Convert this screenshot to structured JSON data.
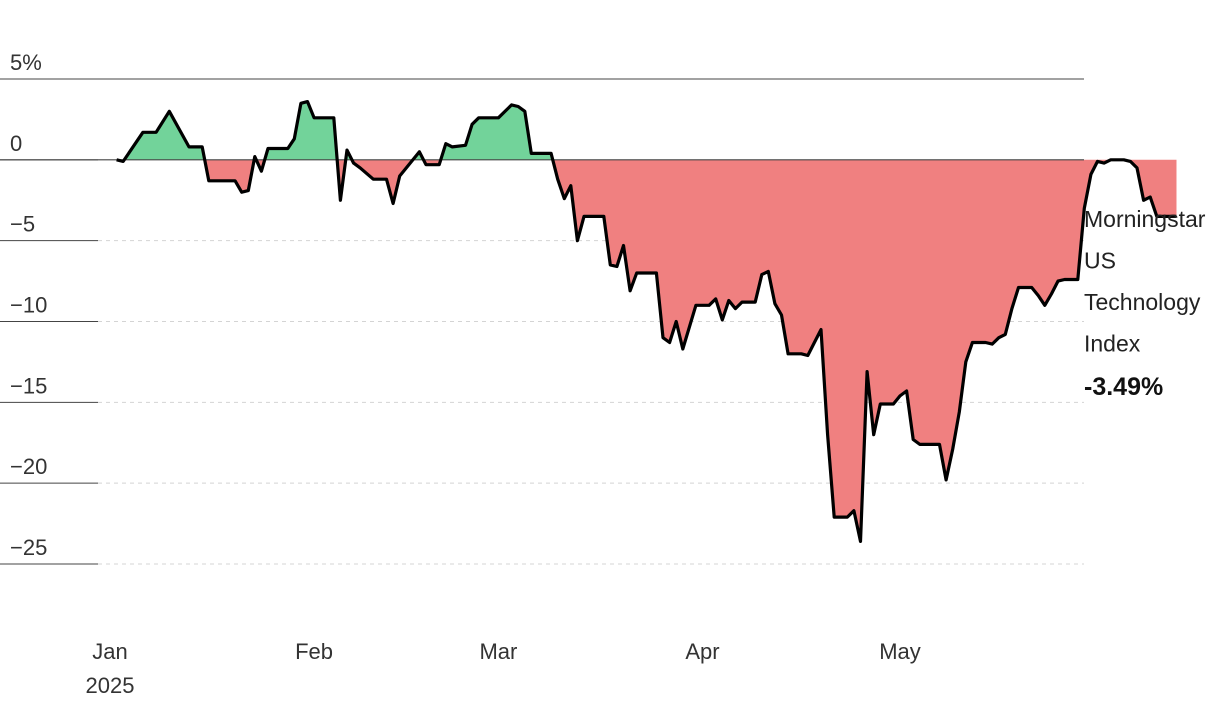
{
  "chart_data": {
    "type": "area",
    "title": "",
    "xlabel": "",
    "ylabel": "",
    "ylim": [
      -25,
      5
    ],
    "grid": true,
    "y_ticks": [
      {
        "value": 5,
        "label": "5%"
      },
      {
        "value": 0,
        "label": "0"
      },
      {
        "value": -5,
        "label": "−5"
      },
      {
        "value": -10,
        "label": "−10"
      },
      {
        "value": -15,
        "label": "−15"
      },
      {
        "value": -20,
        "label": "−20"
      },
      {
        "value": -25,
        "label": "−25"
      }
    ],
    "x_ticks": [
      {
        "date": "2025-01-01",
        "label": "Jan",
        "sublabel": "2025"
      },
      {
        "date": "2025-02-01",
        "label": "Feb",
        "sublabel": ""
      },
      {
        "date": "2025-03-01",
        "label": "Mar",
        "sublabel": ""
      },
      {
        "date": "2025-04-01",
        "label": "Apr",
        "sublabel": ""
      },
      {
        "date": "2025-05-01",
        "label": "May",
        "sublabel": ""
      }
    ],
    "positive_color": "#72d39a",
    "negative_color": "#f08080",
    "line_color": "#000000",
    "series": [
      {
        "name": "Morningstar US Technology Index",
        "name_lines": [
          "Morningstar",
          "US",
          "Technology",
          "Index"
        ],
        "last_value_label": "-3.49%",
        "points": [
          [
            "2025-01-02",
            0.0
          ],
          [
            "2025-01-03",
            -0.1
          ],
          [
            "2025-01-06",
            1.7
          ],
          [
            "2025-01-07",
            1.7
          ],
          [
            "2025-01-08",
            1.7
          ],
          [
            "2025-01-10",
            3.0
          ],
          [
            "2025-01-13",
            0.8
          ],
          [
            "2025-01-14",
            0.8
          ],
          [
            "2025-01-15",
            0.8
          ],
          [
            "2025-01-16",
            -1.3
          ],
          [
            "2025-01-17",
            -1.3
          ],
          [
            "2025-01-20",
            -1.3
          ],
          [
            "2025-01-21",
            -2.0
          ],
          [
            "2025-01-22",
            -1.9
          ],
          [
            "2025-01-23",
            0.2
          ],
          [
            "2025-01-24",
            -0.7
          ],
          [
            "2025-01-25",
            0.7
          ],
          [
            "2025-01-27",
            0.7
          ],
          [
            "2025-01-28",
            0.7
          ],
          [
            "2025-01-29",
            1.3
          ],
          [
            "2025-01-30",
            3.5
          ],
          [
            "2025-01-31",
            3.6
          ],
          [
            "2025-02-01",
            2.6
          ],
          [
            "2025-02-03",
            2.6
          ],
          [
            "2025-02-04",
            2.6
          ],
          [
            "2025-02-05",
            -2.5
          ],
          [
            "2025-02-06",
            0.6
          ],
          [
            "2025-02-07",
            -0.2
          ],
          [
            "2025-02-08",
            -0.5
          ],
          [
            "2025-02-10",
            -1.2
          ],
          [
            "2025-02-11",
            -1.2
          ],
          [
            "2025-02-12",
            -1.2
          ],
          [
            "2025-02-13",
            -2.7
          ],
          [
            "2025-02-14",
            -1.0
          ],
          [
            "2025-02-17",
            0.5
          ],
          [
            "2025-02-18",
            -0.3
          ],
          [
            "2025-02-19",
            -0.3
          ],
          [
            "2025-02-20",
            -0.3
          ],
          [
            "2025-02-21",
            1.0
          ],
          [
            "2025-02-22",
            0.8
          ],
          [
            "2025-02-24",
            0.9
          ],
          [
            "2025-02-25",
            2.2
          ],
          [
            "2025-02-26",
            2.6
          ],
          [
            "2025-02-27",
            2.6
          ],
          [
            "2025-02-28",
            2.6
          ],
          [
            "2025-03-01",
            2.6
          ],
          [
            "2025-03-03",
            3.4
          ],
          [
            "2025-03-04",
            3.3
          ],
          [
            "2025-03-05",
            3.0
          ],
          [
            "2025-03-06",
            0.4
          ],
          [
            "2025-03-07",
            0.4
          ],
          [
            "2025-03-09",
            0.4
          ],
          [
            "2025-03-10",
            -1.2
          ],
          [
            "2025-03-11",
            -2.4
          ],
          [
            "2025-03-12",
            -1.6
          ],
          [
            "2025-03-13",
            -5.0
          ],
          [
            "2025-03-14",
            -3.5
          ],
          [
            "2025-03-15",
            -3.5
          ],
          [
            "2025-03-17",
            -3.5
          ],
          [
            "2025-03-18",
            -6.5
          ],
          [
            "2025-03-19",
            -6.6
          ],
          [
            "2025-03-20",
            -5.3
          ],
          [
            "2025-03-21",
            -8.1
          ],
          [
            "2025-03-22",
            -7.0
          ],
          [
            "2025-03-24",
            -7.0
          ],
          [
            "2025-03-25",
            -7.0
          ],
          [
            "2025-03-26",
            -11.0
          ],
          [
            "2025-03-27",
            -11.3
          ],
          [
            "2025-03-28",
            -10.0
          ],
          [
            "2025-03-29",
            -11.7
          ],
          [
            "2025-03-31",
            -9.0
          ],
          [
            "2025-04-01",
            -9.0
          ],
          [
            "2025-04-02",
            -9.0
          ],
          [
            "2025-04-03",
            -8.6
          ],
          [
            "2025-04-04",
            -9.9
          ],
          [
            "2025-04-05",
            -8.7
          ],
          [
            "2025-04-06",
            -9.2
          ],
          [
            "2025-04-07",
            -8.8
          ],
          [
            "2025-04-08",
            -8.8
          ],
          [
            "2025-04-09",
            -8.8
          ],
          [
            "2025-04-10",
            -7.1
          ],
          [
            "2025-04-11",
            -6.9
          ],
          [
            "2025-04-12",
            -8.9
          ],
          [
            "2025-04-13",
            -9.6
          ],
          [
            "2025-04-14",
            -12.0
          ],
          [
            "2025-04-15",
            -12.0
          ],
          [
            "2025-04-16",
            -12.0
          ],
          [
            "2025-04-17",
            -12.1
          ],
          [
            "2025-04-18",
            -11.3
          ],
          [
            "2025-04-19",
            -10.5
          ],
          [
            "2025-04-20",
            -17.0
          ],
          [
            "2025-04-21",
            -22.1
          ],
          [
            "2025-04-22",
            -22.1
          ],
          [
            "2025-04-23",
            -22.1
          ],
          [
            "2025-04-24",
            -21.7
          ],
          [
            "2025-04-25",
            -23.6
          ],
          [
            "2025-04-26",
            -13.1
          ],
          [
            "2025-04-27",
            -17.0
          ],
          [
            "2025-04-28",
            -15.1
          ],
          [
            "2025-04-29",
            -15.1
          ],
          [
            "2025-04-30",
            -15.1
          ],
          [
            "2025-05-01",
            -14.6
          ],
          [
            "2025-05-02",
            -14.3
          ],
          [
            "2025-05-03",
            -17.3
          ],
          [
            "2025-05-04",
            -17.6
          ],
          [
            "2025-05-05",
            -17.6
          ],
          [
            "2025-05-06",
            -17.6
          ],
          [
            "2025-05-07",
            -17.6
          ],
          [
            "2025-05-08",
            -19.8
          ],
          [
            "2025-05-09",
            -17.9
          ],
          [
            "2025-05-10",
            -15.6
          ],
          [
            "2025-05-11",
            -12.5
          ],
          [
            "2025-05-12",
            -11.3
          ],
          [
            "2025-05-13",
            -11.3
          ],
          [
            "2025-05-14",
            -11.3
          ],
          [
            "2025-05-15",
            -11.4
          ],
          [
            "2025-05-16",
            -11.0
          ],
          [
            "2025-05-17",
            -10.8
          ],
          [
            "2025-05-18",
            -9.2
          ],
          [
            "2025-05-19",
            -7.9
          ],
          [
            "2025-05-20",
            -7.9
          ],
          [
            "2025-05-21",
            -7.9
          ],
          [
            "2025-05-22",
            -8.4
          ],
          [
            "2025-05-23",
            -9.0
          ],
          [
            "2025-05-24",
            -8.3
          ],
          [
            "2025-05-25",
            -7.5
          ],
          [
            "2025-05-26",
            -7.4
          ],
          [
            "2025-05-27",
            -7.4
          ],
          [
            "2025-05-28",
            -7.4
          ],
          [
            "2025-05-29",
            -3.0
          ],
          [
            "2025-05-30",
            -0.9
          ],
          [
            "2025-05-31",
            -0.1
          ],
          [
            "2025-06-01",
            -0.2
          ],
          [
            "2025-06-02",
            0.0
          ],
          [
            "2025-06-03",
            0.0
          ],
          [
            "2025-06-04",
            0.0
          ],
          [
            "2025-06-05",
            -0.1
          ],
          [
            "2025-06-06",
            -0.5
          ],
          [
            "2025-06-07",
            -2.5
          ],
          [
            "2025-06-08",
            -2.3
          ],
          [
            "2025-06-09",
            -3.5
          ],
          [
            "2025-06-10",
            -3.5
          ],
          [
            "2025-06-11",
            -3.5
          ],
          [
            "2025-06-12",
            -3.49
          ]
        ]
      }
    ]
  }
}
